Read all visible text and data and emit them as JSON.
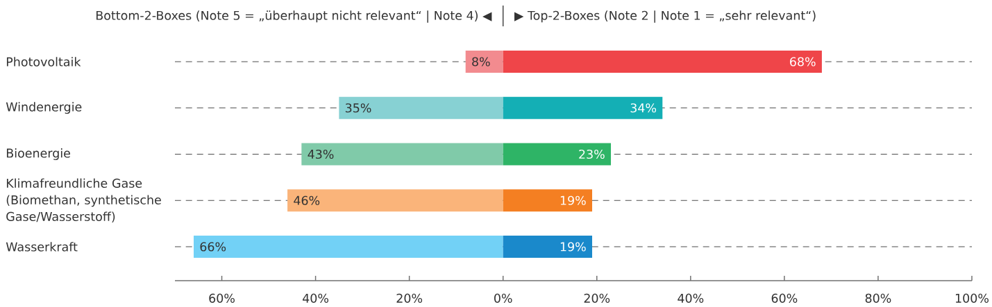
{
  "chart_data": [
    {
      "type": "bar",
      "orientation": "horizontal",
      "categories": [
        "Photovoltaik",
        "Windenergie",
        "Bioenergie",
        "Klimafreundliche Gase (Biomethan, synthetische Gase/Wasserstoff)",
        "Wasserkraft"
      ],
      "series": [
        {
          "name": "Bottom-2-Boxes (Note 5 = „überhaupt nicht relevant“ | Note 4) ◀",
          "colors": [
            "#f28b8f",
            "#87d1d3",
            "#80caa9",
            "#fab47a",
            "#72d1f6"
          ],
          "values": [
            8,
            35,
            43,
            46,
            66
          ],
          "value_labels": [
            "8%",
            "35%",
            "43%",
            "46%",
            "66%"
          ]
        }
      ],
      "xlim": [
        70,
        0
      ],
      "xticks": [
        {
          "value": 60,
          "label": "60%"
        },
        {
          "value": 40,
          "label": "40%"
        },
        {
          "value": 20,
          "label": "20%"
        }
      ],
      "grid": "y",
      "legend": "top"
    },
    {
      "type": "bar",
      "orientation": "horizontal",
      "categories": [
        "Photovoltaik",
        "Windenergie",
        "Bioenergie",
        "Klimafreundliche Gase (Biomethan, synthetische Gase/Wasserstoff)",
        "Wasserkraft"
      ],
      "series": [
        {
          "name": "▶ Top-2-Boxes (Note 2 | Note 1 = „sehr relevant“)",
          "colors": [
            "#ef4549",
            "#14afb5",
            "#2eb466",
            "#f47f22",
            "#1a89cb"
          ],
          "values": [
            68,
            34,
            23,
            19,
            19
          ],
          "value_labels": [
            "68%",
            "34%",
            "23%",
            "19%",
            "19%"
          ]
        }
      ],
      "xlim": [
        0,
        100
      ],
      "xticks": [
        {
          "value": 0,
          "label": "0%"
        },
        {
          "value": 20,
          "label": "20%"
        },
        {
          "value": 40,
          "label": "40%"
        },
        {
          "value": 60,
          "label": "60%"
        },
        {
          "value": 80,
          "label": "80%"
        },
        {
          "value": 100,
          "label": "100%"
        }
      ],
      "grid": "y",
      "legend": "top",
      "tick_labels": "x"
    }
  ]
}
